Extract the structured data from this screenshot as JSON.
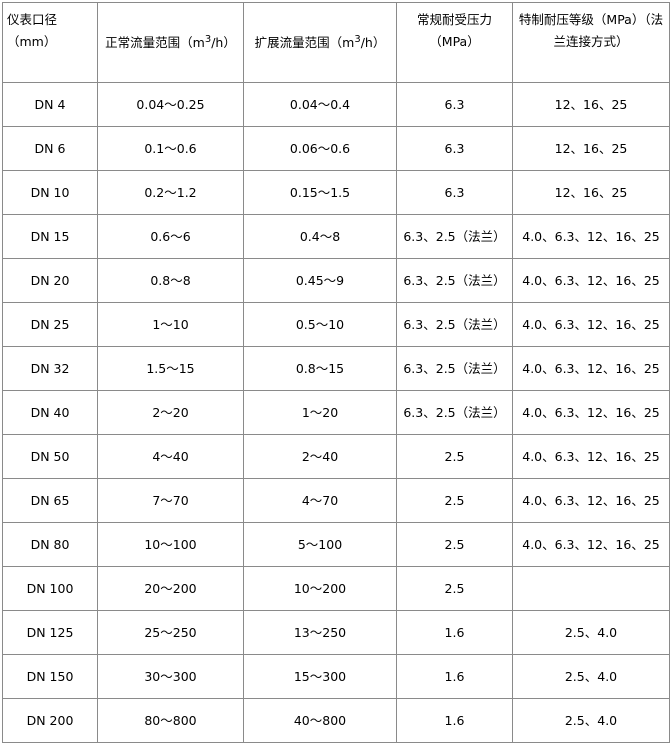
{
  "table": {
    "headers": [
      {
        "text": "仪表口径（mm）"
      },
      {
        "pre": "正常流量范围（m",
        "sup": "3",
        "post": "/h）"
      },
      {
        "pre": "扩展流量范围（m",
        "sup": "3",
        "post": "/h）"
      },
      {
        "text": "常规耐受压力（MPa）"
      },
      {
        "text": "特制耐压等级（MPa）（法兰连接方式）"
      }
    ],
    "rows": [
      [
        "DN 4",
        "0.04～0.25",
        "0.04～0.4",
        "6.3",
        "12、16、25"
      ],
      [
        "DN 6",
        "0.1～0.6",
        "0.06～0.6",
        "6.3",
        "12、16、25"
      ],
      [
        "DN 10",
        "0.2～1.2",
        "0.15～1.5",
        "6.3",
        "12、16、25"
      ],
      [
        "DN 15",
        "0.6～6",
        "0.4～8",
        "6.3、2.5（法兰）",
        "4.0、6.3、12、16、25"
      ],
      [
        "DN 20",
        "0.8～8",
        "0.45～9",
        "6.3、2.5（法兰）",
        "4.0、6.3、12、16、25"
      ],
      [
        "DN 25",
        "1～10",
        "0.5～10",
        "6.3、2.5（法兰）",
        "4.0、6.3、12、16、25"
      ],
      [
        "DN 32",
        "1.5～15",
        "0.8～15",
        "6.3、2.5（法兰）",
        "4.0、6.3、12、16、25"
      ],
      [
        "DN 40",
        "2～20",
        "1～20",
        "6.3、2.5（法兰）",
        "4.0、6.3、12、16、25"
      ],
      [
        "DN 50",
        "4～40",
        "2～40",
        "2.5",
        "4.0、6.3、12、16、25"
      ],
      [
        "DN 65",
        "7～70",
        "4～70",
        "2.5",
        "4.0、6.3、12、16、25"
      ],
      [
        "DN 80",
        "10～100",
        "5～100",
        "2.5",
        "4.0、6.3、12、16、25"
      ],
      [
        "DN 100",
        "20～200",
        "10～200",
        "2.5",
        ""
      ],
      [
        "DN 125",
        "25～250",
        "13～250",
        "1.6",
        "2.5、4.0"
      ],
      [
        "DN 150",
        "30～300",
        "15～300",
        "1.6",
        "2.5、4.0"
      ],
      [
        "DN 200",
        "80～800",
        "40～800",
        "1.6",
        "2.5、4.0"
      ]
    ]
  }
}
